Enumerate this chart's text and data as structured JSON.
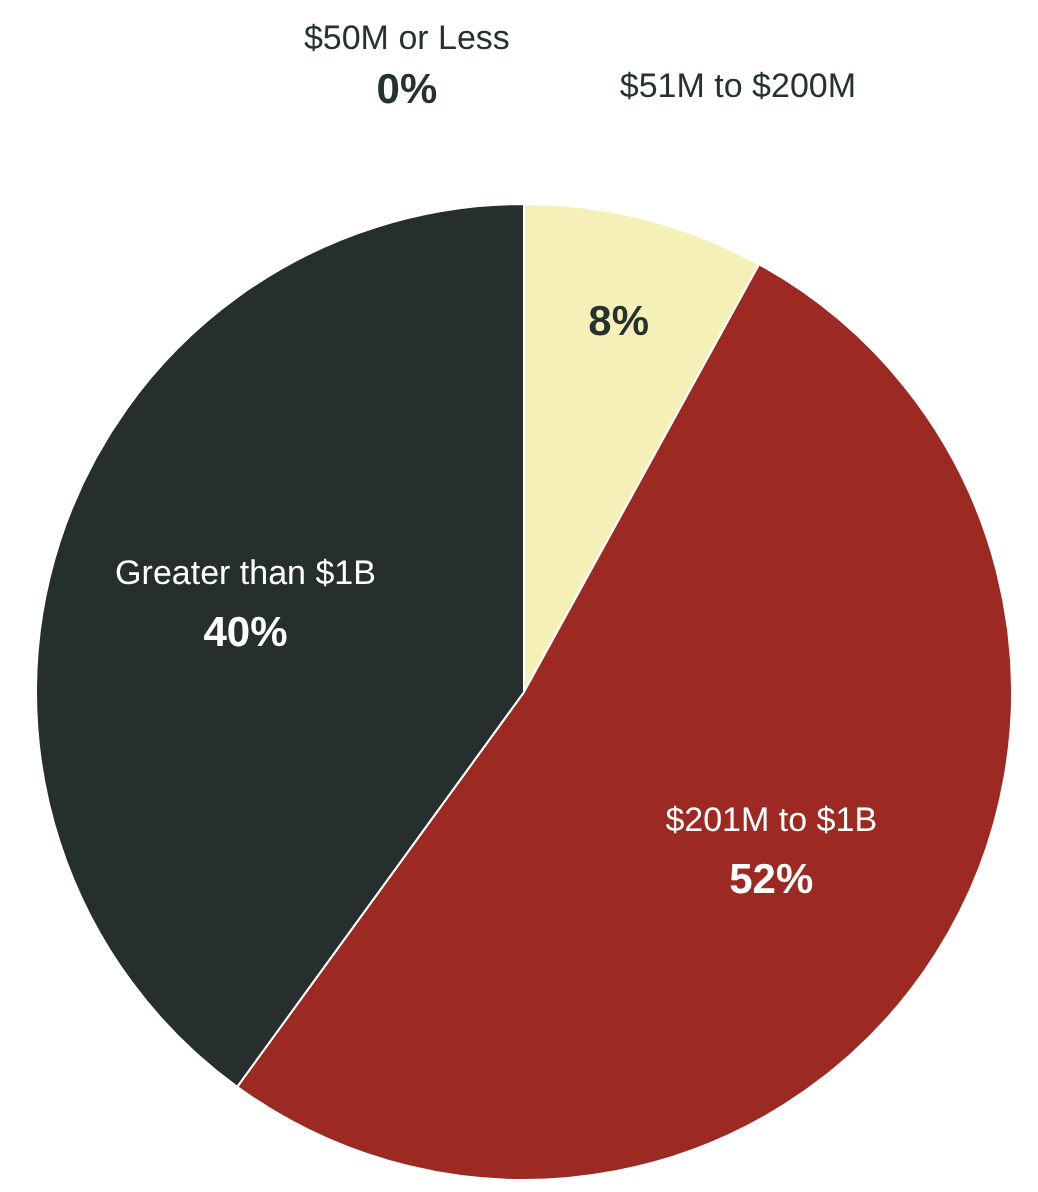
{
  "chart_data": {
    "type": "pie",
    "categories": [
      "$50M or Less",
      "$51M to $200M",
      "$201M to $1B",
      "Greater than $1B"
    ],
    "values": [
      0,
      8,
      52,
      40
    ],
    "colors": [
      "#e8e2a8",
      "#f5efb8",
      "#9c2a22",
      "#262e2e"
    ],
    "value_labels": [
      "0%",
      "8%",
      "52%",
      "40%"
    ]
  }
}
